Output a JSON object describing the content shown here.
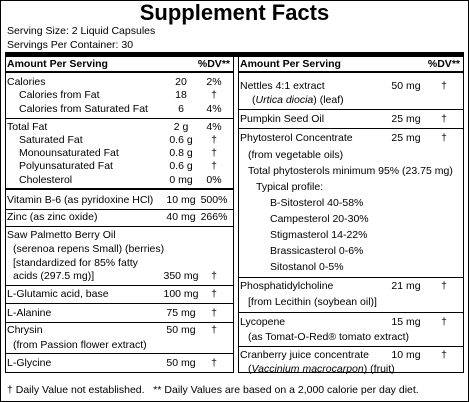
{
  "title": "Supplement Facts",
  "serving_size": "Serving Size: 2 Liquid Capsules",
  "servings_per_container": "Servings Per Container: 30",
  "left": {
    "header": {
      "amount": "Amount Per Serving",
      "dv": "%DV**"
    },
    "rows": [
      [
        {
          "name": "Calories",
          "amount": "20",
          "dv": "2%"
        },
        {
          "name": "Calories from Fat",
          "amount": "18",
          "dv": "†"
        },
        {
          "name": "Calories from Saturated Fat",
          "amount": "6",
          "dv": "4%"
        }
      ],
      [
        {
          "name": "Total Fat",
          "amount": "2 g",
          "dv": "4%"
        },
        {
          "name": "Saturated Fat",
          "amount": "0.6 g",
          "dv": "†"
        },
        {
          "name": "Monounsaturated Fat",
          "amount": "0.8 g",
          "dv": "†"
        },
        {
          "name": "Polyunsaturated Fat",
          "amount": "0.6 g",
          "dv": "†"
        },
        {
          "name": "Cholesterol",
          "amount": "0 mg",
          "dv": "0%"
        }
      ],
      [
        {
          "name": "Vitamin B-6 (as pyridoxine HCl)",
          "amount": "10 mg",
          "dv": "500%"
        }
      ],
      [
        {
          "name": "Zinc (as zinc oxide)",
          "amount": "40 mg",
          "dv": "266%"
        }
      ],
      [
        {
          "name": "Saw Palmetto Berry Oil"
        },
        {
          "name": "(serenoa repens Small) (berries)"
        },
        {
          "name": "[standardized for 85% fatty"
        },
        {
          "name": "acids (297.5 mg)]",
          "amount": "350 mg",
          "dv": "†"
        }
      ],
      [
        {
          "name": "L-Glutamic acid, base",
          "amount": "100 mg",
          "dv": "†"
        }
      ],
      [
        {
          "name": "L-Alanine",
          "amount": "75 mg",
          "dv": "†"
        }
      ],
      [
        {
          "name": "Chrysin",
          "amount": "50 mg",
          "dv": "†"
        },
        {
          "name": "(from Passion flower extract)"
        }
      ],
      [
        {
          "name": "L-Glycine",
          "amount": "50 mg",
          "dv": "†"
        }
      ]
    ]
  },
  "right": {
    "header": {
      "amount": "Amount Per Serving",
      "dv": "%DV**"
    },
    "rows": [
      [
        {
          "name": "Nettles 4:1 extract",
          "amount": "50 mg",
          "dv": "†"
        },
        {
          "name": [
            "(",
            "Urtica diocia",
            ") (leaf)"
          ]
        }
      ],
      [
        {
          "name": "Pumpkin Seed Oil",
          "amount": "25 mg",
          "dv": "†"
        }
      ],
      [
        {
          "name": "Phytosterol Concentrate",
          "amount": "25 mg",
          "dv": "†"
        },
        {
          "name": "(from vegetable oils)"
        },
        {
          "name": "Total phytosterols minimum 95% (23.75 mg)"
        },
        {
          "name": "Typical profile:"
        },
        {
          "name": "B-Sitosterol 40-58%"
        },
        {
          "name": "Campesterol 20-30%"
        },
        {
          "name": "Stigmasterol 14-22%"
        },
        {
          "name": "Brassicasterol 0-6%"
        },
        {
          "name": "Sitostanol 0-5%"
        }
      ],
      [
        {
          "name": "Phosphatidylcholine",
          "amount": "21 mg",
          "dv": "†"
        },
        {
          "name": "[from Lecithin (soybean oil)]"
        }
      ],
      [
        {
          "name": "Lycopene",
          "amount": "15 mg",
          "dv": "†"
        },
        {
          "name": "(as Tomat-O-Red® tomato extract)"
        }
      ],
      [
        {
          "name": "Cranberry juice concentrate",
          "amount": "10 mg",
          "dv": "†"
        },
        {
          "name": [
            "(",
            "Vaccinium macrocarpon",
            ") (fruit)"
          ]
        }
      ]
    ]
  },
  "footnote": "† Daily Value not established.   ** Daily Values are based on a 2,000 calorie per day diet."
}
